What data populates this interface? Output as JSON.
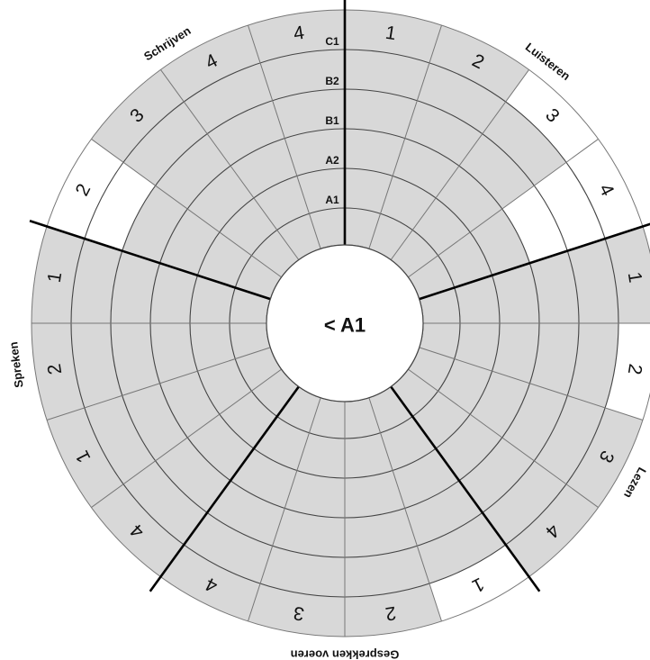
{
  "center_label": "< A1",
  "levels": [
    "A1",
    "A2",
    "B1",
    "B2",
    "C1"
  ],
  "colors": {
    "fill": "#d8d8d8",
    "ring_stroke": "#444444",
    "divider_stroke": "#777777",
    "skill_stroke": "#000000",
    "background": "#ffffff"
  },
  "skills": [
    {
      "name": "Luisteren",
      "subsections": [
        "1",
        "2",
        "3",
        "4"
      ],
      "reached_level": [
        5,
        5,
        4,
        2
      ]
    },
    {
      "name": "Lezen",
      "subsections": [
        "1",
        "2",
        "3",
        "4"
      ],
      "reached_level": [
        5,
        4,
        5,
        5
      ]
    },
    {
      "name": "Gesprekken voeren",
      "subsections": [
        "1",
        "2",
        "3",
        "4"
      ],
      "reached_level": [
        4,
        5,
        5,
        5
      ]
    },
    {
      "name": "Spreken",
      "subsections": [
        "4",
        "1",
        "2",
        "1"
      ],
      "reached_level": [
        5,
        5,
        5,
        5
      ]
    },
    {
      "name": "Schrijven",
      "subsections": [
        "2",
        "3",
        "4"
      ],
      "reached_level": [
        3,
        5,
        5
      ]
    }
  ],
  "top_sector": {
    "subsection": "4",
    "reached_level": 5
  }
}
